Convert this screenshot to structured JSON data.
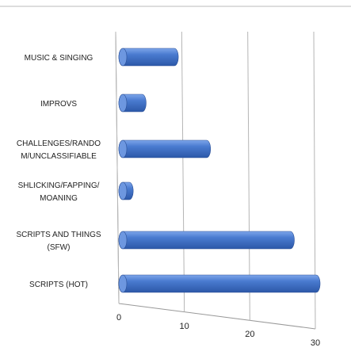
{
  "chart_data": {
    "type": "bar3d",
    "categories": [
      "MUSIC & SINGING",
      "IMPROVS",
      "CHALLENGES/RANDO\nM/UNCLASSIFIABLE",
      "SHLICKING/FAPPING/\nMOANING",
      "SCRIPTS AND THINGS\n(SFW)",
      "SCRIPTS (HOT)"
    ],
    "values": [
      8,
      3,
      13,
      1,
      26,
      30
    ],
    "color": "#4a7bd0",
    "xlim": [
      0,
      30
    ],
    "xticks": [
      0,
      10,
      20,
      30
    ],
    "grid": true
  }
}
